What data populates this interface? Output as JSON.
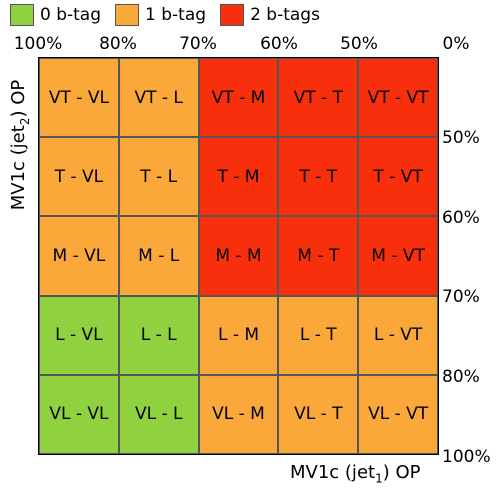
{
  "legend": {
    "items": [
      {
        "label": "0 b-tag",
        "color": "#8fd13f"
      },
      {
        "label": "1 b-tag",
        "color": "#fba83b"
      },
      {
        "label": "2 b-tags",
        "color": "#f72f0c"
      }
    ]
  },
  "top_ticks": [
    "100%",
    "80%",
    "70%",
    "60%",
    "50%",
    "0%"
  ],
  "right_ticks": [
    "50%",
    "60%",
    "70%",
    "80%",
    "100%"
  ],
  "y_axis": {
    "prefix": "MV1c (jet",
    "sub": "2",
    "suffix": ") OP"
  },
  "x_axis": {
    "prefix": "MV1c (jet",
    "sub": "1",
    "suffix": ") OP"
  },
  "grid": [
    [
      {
        "label": "VT - VL",
        "tags": 1
      },
      {
        "label": "VT - L",
        "tags": 1
      },
      {
        "label": "VT - M",
        "tags": 2
      },
      {
        "label": "VT - T",
        "tags": 2
      },
      {
        "label": "VT - VT",
        "tags": 2
      }
    ],
    [
      {
        "label": "T - VL",
        "tags": 1
      },
      {
        "label": "T - L",
        "tags": 1
      },
      {
        "label": "T - M",
        "tags": 2
      },
      {
        "label": "T - T",
        "tags": 2
      },
      {
        "label": "T - VT",
        "tags": 2
      }
    ],
    [
      {
        "label": "M - VL",
        "tags": 1
      },
      {
        "label": "M - L",
        "tags": 1
      },
      {
        "label": "M - M",
        "tags": 2
      },
      {
        "label": "M - T",
        "tags": 2
      },
      {
        "label": "M - VT",
        "tags": 2
      }
    ],
    [
      {
        "label": "L - VL",
        "tags": 0
      },
      {
        "label": "L - L",
        "tags": 0
      },
      {
        "label": "L - M",
        "tags": 1
      },
      {
        "label": "L - T",
        "tags": 1
      },
      {
        "label": "L - VT",
        "tags": 1
      }
    ],
    [
      {
        "label": "VL - VL",
        "tags": 0
      },
      {
        "label": "VL - L",
        "tags": 0
      },
      {
        "label": "VL - M",
        "tags": 1
      },
      {
        "label": "VL - T",
        "tags": 1
      },
      {
        "label": "VL - VT",
        "tags": 1
      }
    ]
  ]
}
